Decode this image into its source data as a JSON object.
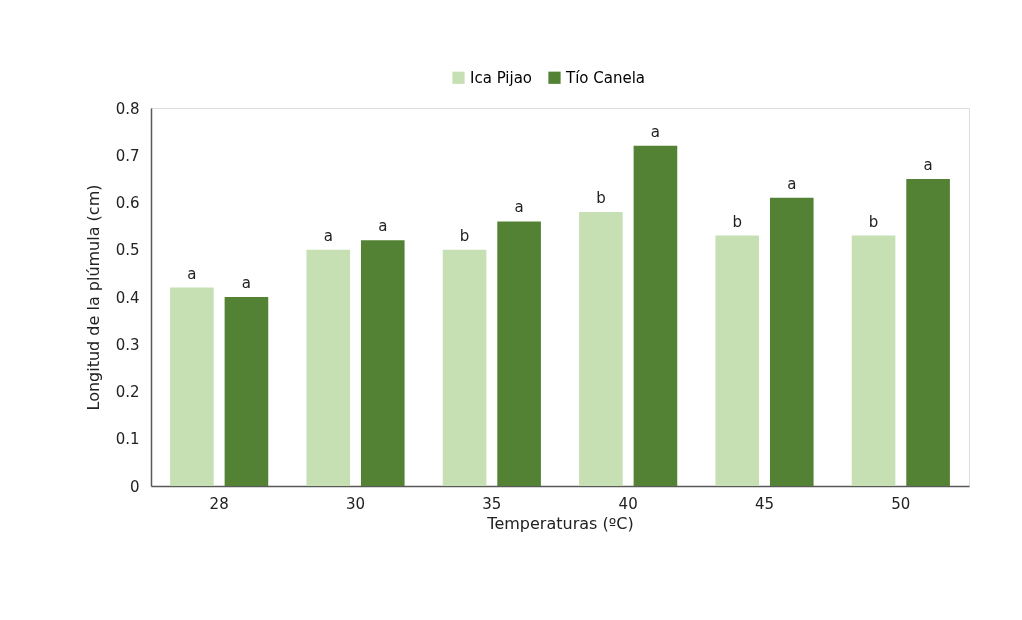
{
  "chart_data": {
    "type": "bar",
    "xlabel": "Temperaturas  (ºC)",
    "ylabel": "Longitud  de la plúmula  (cm)",
    "categories": [
      "28",
      "30",
      "35",
      "40",
      "45",
      "50"
    ],
    "series": [
      {
        "name": "Ica Pijao",
        "color": "#c6e0b4",
        "values": [
          0.42,
          0.5,
          0.5,
          0.58,
          0.53,
          0.53
        ],
        "value_labels": [
          "a",
          "a",
          "b",
          "b",
          "b",
          "b"
        ]
      },
      {
        "name": "Tío Canela",
        "color": "#548235",
        "values": [
          0.4,
          0.52,
          0.56,
          0.72,
          0.61,
          0.65
        ],
        "value_labels": [
          "a",
          "a",
          "a",
          "a",
          "a",
          "a"
        ]
      }
    ],
    "ylim": [
      0,
      0.8
    ],
    "yticks": [
      0,
      0.1,
      0.2,
      0.3,
      0.4,
      0.5,
      0.6,
      0.7,
      0.8
    ],
    "grid": false,
    "legend": "top"
  }
}
